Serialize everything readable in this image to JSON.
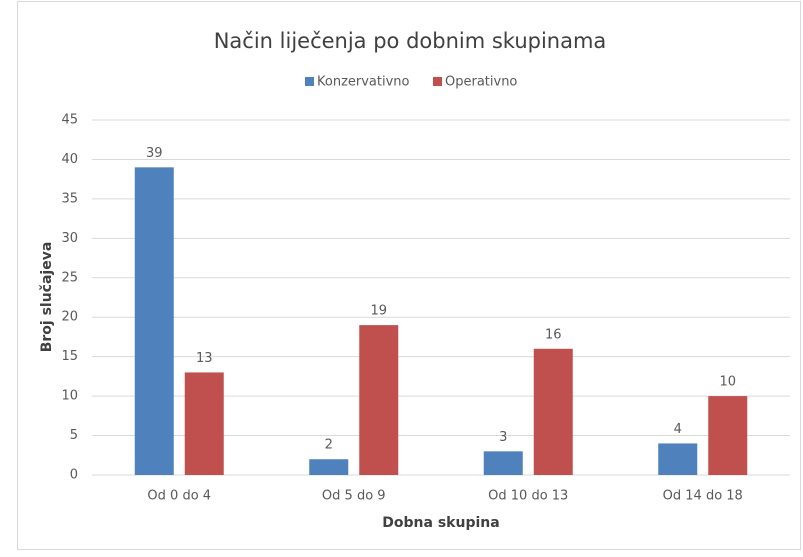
{
  "chart_data": {
    "type": "bar",
    "title": "Način liječenja po dobnim skupinama",
    "categories": [
      "Od 0 do 4",
      "Od 5 do 9",
      "Od 10 do 13",
      "Od 14 do 18"
    ],
    "series": [
      {
        "name": "Konzervativno",
        "color": "#4f81bd",
        "values": [
          39,
          2,
          3,
          4
        ]
      },
      {
        "name": "Operativno",
        "color": "#c0504d",
        "values": [
          13,
          19,
          16,
          10
        ]
      }
    ],
    "xlabel": "Dobna skupina",
    "ylabel": "Broj slučajeva",
    "ylim": [
      0,
      45
    ],
    "yticks": [
      0,
      5,
      10,
      15,
      20,
      25,
      30,
      35,
      40,
      45
    ],
    "grid": true,
    "legend": "top"
  }
}
